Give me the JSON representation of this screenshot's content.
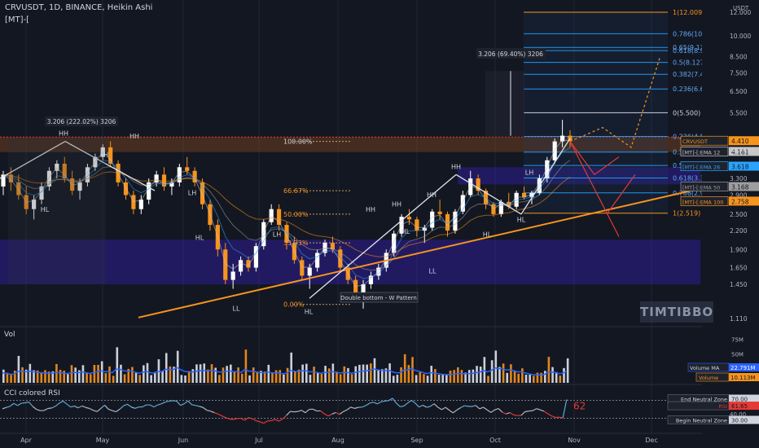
{
  "header": {
    "symbol": "CRVUSDT, 1D, BINANCE, Heikin Ashi",
    "indicator": "[MT]-["
  },
  "watermark": "TIMTIBBO",
  "colors": {
    "bg": "#131722",
    "up": "#ffffff",
    "down": "#f7941d",
    "ema12": "#c6c6c6",
    "ema26": "#2aa3ff",
    "ema50": "#9e9e9e",
    "ema100": "#f7941d",
    "zone": "#3f1fd6",
    "fib": "#2196f3",
    "grid": "#1f2533"
  },
  "chart_data": [
    {
      "type": "candlestick",
      "title": "CRVUSDT, 1D, BINANCE, Heikin Ashi",
      "x_labels": [
        "Apr",
        "May",
        "Jun",
        "Jul",
        "Aug",
        "Sep",
        "Oct",
        "Nov",
        "Dec"
      ],
      "y_scale": "log",
      "y_ticks": [
        "12.000",
        "10.000",
        "8.500",
        "7.500",
        "6.500",
        "5.500",
        "4.000",
        "3.300",
        "2.900",
        "2.500",
        "2.200",
        "1.900",
        "1.650",
        "1.450",
        "1.110"
      ],
      "currency_label": "USDT",
      "fib_levels": [
        {
          "label": "1(12.009)",
          "value": 12.009
        },
        {
          "label": "0.786(10.161)",
          "value": 10.161
        },
        {
          "label": "0.65(9.131)",
          "value": 9.131
        },
        {
          "label": "0.618(8.911)",
          "value": 8.911
        },
        {
          "label": "0.5(8.127)",
          "value": 8.127
        },
        {
          "label": "0.382(7.412)",
          "value": 7.412
        },
        {
          "label": "0.236(6.613)",
          "value": 6.613
        },
        {
          "label": "0(5.500)",
          "value": 5.5
        },
        {
          "label": "0.236(4.574)",
          "value": 4.574
        },
        {
          "label": "0.382(4.0..)",
          "value": 4.05
        },
        {
          "label": "0.5(3.6..)",
          "value": 3.65
        },
        {
          "label": "0.618(3.311)",
          "value": 3.311
        },
        {
          "label": "0.786(2.9..)",
          "value": 2.95
        },
        {
          "label": "1(2.519)",
          "value": 2.519
        }
      ],
      "retracements": [
        {
          "label": "100.00%",
          "value": 4.4
        },
        {
          "label": "66.67%",
          "value": 3.0
        },
        {
          "label": "50.00%",
          "value": 2.5
        },
        {
          "label": "33.33%",
          "value": 2.0
        },
        {
          "label": "0.00%",
          "value": 1.24
        }
      ],
      "price_tags": [
        {
          "label": "CRVUSDT",
          "value": "4.410",
          "sub": "10:16:52",
          "color": "#f7941d"
        },
        {
          "label": "[MT]-[:EMA 12",
          "value": "4.161",
          "color": "#c6c6c6"
        },
        {
          "label": "[MT]-[:EMA 26",
          "value": "3.618",
          "color": "#2aa3ff"
        },
        {
          "label": "[MT]-[:EMA 50",
          "value": "3.168",
          "color": "#9e9e9e"
        },
        {
          "label": "[MT]-[:EMA 100",
          "value": "2.758",
          "color": "#f7941d"
        }
      ],
      "measures": [
        {
          "label": "3.206 (222.02%) 3206"
        },
        {
          "label": "3.206 (69.40%) 3206"
        }
      ],
      "annotations": [
        "Double bottom - W Pattern"
      ],
      "pivot_labels": [
        "HH",
        "HL",
        "LH",
        "LL"
      ],
      "candles": [
        [
          3.1,
          3.5,
          2.9,
          3.4
        ],
        [
          3.4,
          3.6,
          3.0,
          3.2
        ],
        [
          3.2,
          3.4,
          2.8,
          2.9
        ],
        [
          2.9,
          3.1,
          2.5,
          2.6
        ],
        [
          2.6,
          2.9,
          2.4,
          2.8
        ],
        [
          2.8,
          3.2,
          2.7,
          3.1
        ],
        [
          3.1,
          3.6,
          3.0,
          3.5
        ],
        [
          3.5,
          3.8,
          3.3,
          3.7
        ],
        [
          3.7,
          3.9,
          3.2,
          3.3
        ],
        [
          3.3,
          3.5,
          2.9,
          3.0
        ],
        [
          3.0,
          3.3,
          2.8,
          3.2
        ],
        [
          3.2,
          3.7,
          3.1,
          3.6
        ],
        [
          3.6,
          4.0,
          3.5,
          3.9
        ],
        [
          3.9,
          4.3,
          3.8,
          4.2
        ],
        [
          4.2,
          4.4,
          3.6,
          3.7
        ],
        [
          3.7,
          3.8,
          3.1,
          3.2
        ],
        [
          3.2,
          3.3,
          2.8,
          2.9
        ],
        [
          2.9,
          3.0,
          2.5,
          2.6
        ],
        [
          2.6,
          2.9,
          2.5,
          2.8
        ],
        [
          2.8,
          3.3,
          2.7,
          3.2
        ],
        [
          3.2,
          3.5,
          3.1,
          3.4
        ],
        [
          3.4,
          3.6,
          3.0,
          3.1
        ],
        [
          3.1,
          3.3,
          2.9,
          3.2
        ],
        [
          3.2,
          3.7,
          3.1,
          3.6
        ],
        [
          3.6,
          3.9,
          3.4,
          3.5
        ],
        [
          3.5,
          3.6,
          3.1,
          3.2
        ],
        [
          3.2,
          3.3,
          2.6,
          2.7
        ],
        [
          2.7,
          2.8,
          2.2,
          2.3
        ],
        [
          2.3,
          2.4,
          1.8,
          1.9
        ],
        [
          1.9,
          2.0,
          1.45,
          1.5
        ],
        [
          1.5,
          1.7,
          1.4,
          1.6
        ],
        [
          1.6,
          1.8,
          1.55,
          1.75
        ],
        [
          1.75,
          1.8,
          1.6,
          1.65
        ],
        [
          1.65,
          2.0,
          1.6,
          1.95
        ],
        [
          1.95,
          2.4,
          1.9,
          2.35
        ],
        [
          2.35,
          2.7,
          2.3,
          2.6
        ],
        [
          2.6,
          2.7,
          2.2,
          2.3
        ],
        [
          2.3,
          2.35,
          1.9,
          2.0
        ],
        [
          2.0,
          2.1,
          1.7,
          1.75
        ],
        [
          1.75,
          1.8,
          1.5,
          1.55
        ],
        [
          1.55,
          1.7,
          1.4,
          1.65
        ],
        [
          1.65,
          1.9,
          1.6,
          1.85
        ],
        [
          1.85,
          2.05,
          1.8,
          2.0
        ],
        [
          2.0,
          2.1,
          1.85,
          1.9
        ],
        [
          1.9,
          1.95,
          1.6,
          1.65
        ],
        [
          1.65,
          1.7,
          1.45,
          1.5
        ],
        [
          1.5,
          1.55,
          1.3,
          1.35
        ],
        [
          1.35,
          1.5,
          1.2,
          1.45
        ],
        [
          1.45,
          1.6,
          1.4,
          1.55
        ],
        [
          1.55,
          1.7,
          1.5,
          1.65
        ],
        [
          1.65,
          1.9,
          1.6,
          1.85
        ],
        [
          1.85,
          2.2,
          1.8,
          2.15
        ],
        [
          2.15,
          2.5,
          2.1,
          2.45
        ],
        [
          2.45,
          2.6,
          2.3,
          2.4
        ],
        [
          2.4,
          2.45,
          2.1,
          2.2
        ],
        [
          2.2,
          2.3,
          2.0,
          2.25
        ],
        [
          2.25,
          2.6,
          2.2,
          2.55
        ],
        [
          2.55,
          2.8,
          2.4,
          2.5
        ],
        [
          2.5,
          2.55,
          2.1,
          2.2
        ],
        [
          2.2,
          2.6,
          2.15,
          2.55
        ],
        [
          2.55,
          3.0,
          2.5,
          2.9
        ],
        [
          2.9,
          3.5,
          2.85,
          3.3
        ],
        [
          3.3,
          3.4,
          2.9,
          3.0
        ],
        [
          3.0,
          3.05,
          2.6,
          2.7
        ],
        [
          2.7,
          2.75,
          2.45,
          2.5
        ],
        [
          2.5,
          2.8,
          2.45,
          2.75
        ],
        [
          2.75,
          2.95,
          2.6,
          2.65
        ],
        [
          2.65,
          3.0,
          2.6,
          2.95
        ],
        [
          2.95,
          3.1,
          2.8,
          2.85
        ],
        [
          2.85,
          3.0,
          2.7,
          2.95
        ],
        [
          2.95,
          3.4,
          2.9,
          3.3
        ],
        [
          3.3,
          3.9,
          3.2,
          3.8
        ],
        [
          3.8,
          4.5,
          3.7,
          4.4
        ],
        [
          4.4,
          5.2,
          4.2,
          4.6
        ],
        [
          4.6,
          4.8,
          4.2,
          4.41
        ]
      ],
      "volume": {
        "title": "Vol",
        "ticks": [
          "75M",
          "50M",
          "25M"
        ],
        "ma_label": "Volume MA",
        "ma_value": "22.791M",
        "last_label": "Volume",
        "last_value": "10.113M"
      },
      "rsi": {
        "title": "CCI colored RSI",
        "ticks": [
          "70.00",
          "40.00",
          "30.00"
        ],
        "tags": [
          {
            "label": "End Neutral Zone",
            "value": "70.00"
          },
          {
            "label": "RSI",
            "value": "61.65"
          },
          {
            "label": "Begin Neutral Zone",
            "value": "30.00"
          }
        ],
        "current": "62"
      }
    }
  ]
}
